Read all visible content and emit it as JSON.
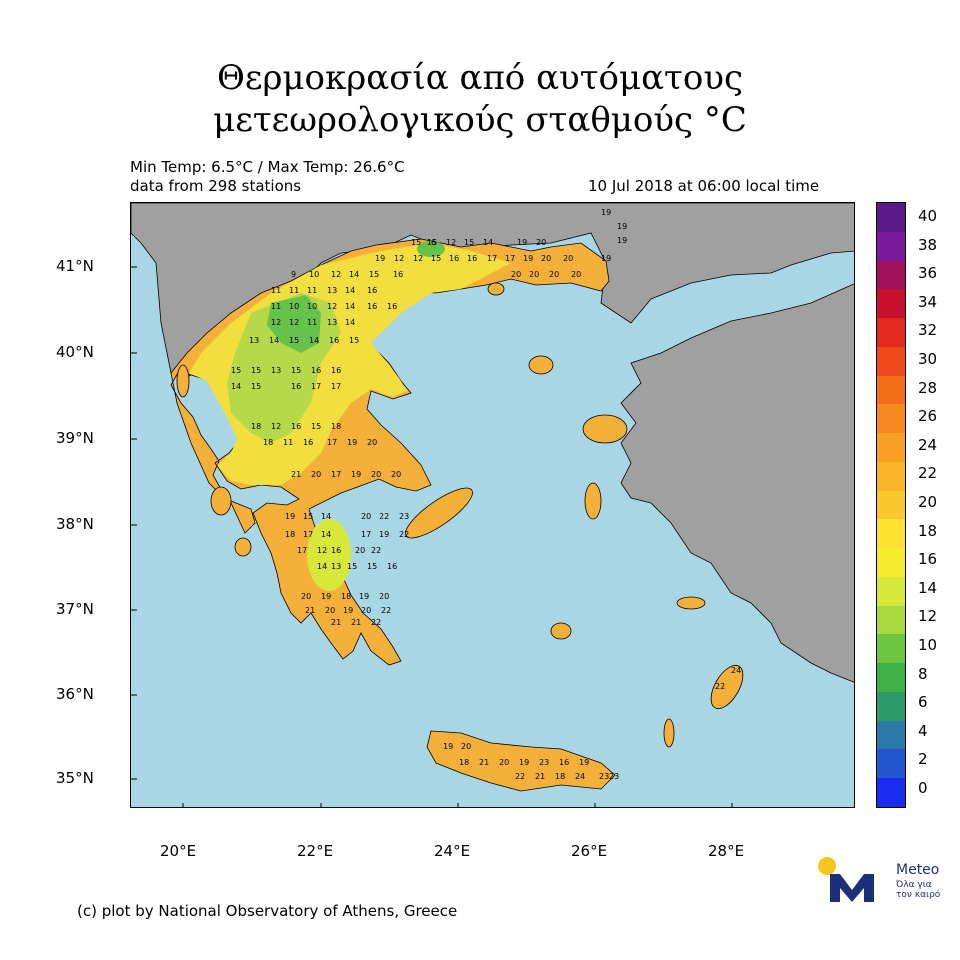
{
  "title": {
    "line1": "Θερμοκρασία από αυτόματους",
    "line2": "μετεωρολογικούς σταθμούς",
    "unit": "°C"
  },
  "header": {
    "min_max": "Min Temp: 6.5°C / Max Temp: 26.6°C",
    "stations": "data from 298 stations",
    "timestamp": "10 Jul 2018 at 06:00 local time"
  },
  "axes": {
    "lat_labels": [
      "41°N",
      "40°N",
      "39°N",
      "38°N",
      "37°N",
      "36°N",
      "35°N"
    ],
    "lon_labels": [
      "20°E",
      "22°E",
      "24°E",
      "26°E",
      "28°E"
    ]
  },
  "colorbar": {
    "labels": [
      "40",
      "38",
      "36",
      "34",
      "32",
      "30",
      "28",
      "26",
      "24",
      "22",
      "20",
      "18",
      "16",
      "14",
      "12",
      "10",
      "8",
      "6",
      "4",
      "2",
      "0"
    ],
    "colors": [
      "#5b1a8a",
      "#7a1a9a",
      "#a0105c",
      "#c8102e",
      "#e0281e",
      "#f04a1a",
      "#f46e1a",
      "#f68a1e",
      "#f8a024",
      "#f9b428",
      "#fbc82c",
      "#fde030",
      "#f4ec2c",
      "#d8e83a",
      "#a8da3e",
      "#6cc640",
      "#3cb044",
      "#2e9a6a",
      "#2a7aa8",
      "#2456d0",
      "#1a2cf0"
    ]
  },
  "map_colors": {
    "sea": "#a9d6e5",
    "other_land": "#a0a0a0",
    "warm": "#f5b03a",
    "mild": "#f2de3c",
    "cool": "#b6d94a",
    "cold": "#66c24a"
  },
  "footer": "(c) plot by National Observatory of Athens, Greece",
  "logo": {
    "brand": "Meteo",
    "tagline1": "Όλα για",
    "tagline2": "τον καιρό"
  },
  "stations": [
    {
      "v": "19"
    },
    {
      "v": "19"
    },
    {
      "v": "15"
    },
    {
      "v": "15"
    },
    {
      "v": "6"
    },
    {
      "v": "12"
    },
    {
      "v": "15"
    },
    {
      "v": "14"
    },
    {
      "v": "19"
    },
    {
      "v": "20"
    },
    {
      "v": "19"
    },
    {
      "v": "19"
    },
    {
      "v": "12"
    },
    {
      "v": "12"
    },
    {
      "v": "15"
    },
    {
      "v": "16"
    },
    {
      "v": "16"
    },
    {
      "v": "17"
    },
    {
      "v": "17"
    },
    {
      "v": "19"
    },
    {
      "v": "20"
    },
    {
      "v": "20"
    },
    {
      "v": "19"
    },
    {
      "v": "9"
    },
    {
      "v": "10"
    },
    {
      "v": "12"
    },
    {
      "v": "14"
    },
    {
      "v": "15"
    },
    {
      "v": "16"
    },
    {
      "v": "20"
    },
    {
      "v": "20"
    },
    {
      "v": "20"
    },
    {
      "v": "20"
    },
    {
      "v": "11"
    },
    {
      "v": "11"
    },
    {
      "v": "11"
    },
    {
      "v": "13"
    },
    {
      "v": "14"
    },
    {
      "v": "16"
    },
    {
      "v": "11"
    },
    {
      "v": "10"
    },
    {
      "v": "10"
    },
    {
      "v": "12"
    },
    {
      "v": "14"
    },
    {
      "v": "16"
    },
    {
      "v": "16"
    },
    {
      "v": "12"
    },
    {
      "v": "12"
    },
    {
      "v": "11"
    },
    {
      "v": "13"
    },
    {
      "v": "14"
    },
    {
      "v": "13"
    },
    {
      "v": "14"
    },
    {
      "v": "15"
    },
    {
      "v": "14"
    },
    {
      "v": "16"
    },
    {
      "v": "15"
    },
    {
      "v": "15"
    },
    {
      "v": "15"
    },
    {
      "v": "13"
    },
    {
      "v": "15"
    },
    {
      "v": "16"
    },
    {
      "v": "16"
    },
    {
      "v": "14"
    },
    {
      "v": "15"
    },
    {
      "v": "16"
    },
    {
      "v": "17"
    },
    {
      "v": "17"
    },
    {
      "v": "18"
    },
    {
      "v": "12"
    },
    {
      "v": "16"
    },
    {
      "v": "15"
    },
    {
      "v": "18"
    },
    {
      "v": "18"
    },
    {
      "v": "11"
    },
    {
      "v": "16"
    },
    {
      "v": "17"
    },
    {
      "v": "19"
    },
    {
      "v": "20"
    },
    {
      "v": "21"
    },
    {
      "v": "20"
    },
    {
      "v": "17"
    },
    {
      "v": "19"
    },
    {
      "v": "20"
    },
    {
      "v": "20"
    },
    {
      "v": "19"
    },
    {
      "v": "15"
    },
    {
      "v": "14"
    },
    {
      "v": "20"
    },
    {
      "v": "22"
    },
    {
      "v": "23"
    },
    {
      "v": "18"
    },
    {
      "v": "17"
    },
    {
      "v": "14"
    },
    {
      "v": "17"
    },
    {
      "v": "19"
    },
    {
      "v": "22"
    },
    {
      "v": "17"
    },
    {
      "v": "12"
    },
    {
      "v": "16"
    },
    {
      "v": "20"
    },
    {
      "v": "22"
    },
    {
      "v": "14"
    },
    {
      "v": "13"
    },
    {
      "v": "15"
    },
    {
      "v": "15"
    },
    {
      "v": "16"
    },
    {
      "v": "20"
    },
    {
      "v": "19"
    },
    {
      "v": "18"
    },
    {
      "v": "19"
    },
    {
      "v": "20"
    },
    {
      "v": "21"
    },
    {
      "v": "20"
    },
    {
      "v": "19"
    },
    {
      "v": "20"
    },
    {
      "v": "22"
    },
    {
      "v": "21"
    },
    {
      "v": "21"
    },
    {
      "v": "22"
    },
    {
      "v": "19"
    },
    {
      "v": "20"
    },
    {
      "v": "18"
    },
    {
      "v": "21"
    },
    {
      "v": "20"
    },
    {
      "v": "19"
    },
    {
      "v": "23"
    },
    {
      "v": "16"
    },
    {
      "v": "19"
    },
    {
      "v": "22"
    },
    {
      "v": "21"
    },
    {
      "v": "18"
    },
    {
      "v": "24"
    },
    {
      "v": "23"
    },
    {
      "v": "22"
    },
    {
      "v": "24"
    },
    {
      "v": "23"
    }
  ]
}
